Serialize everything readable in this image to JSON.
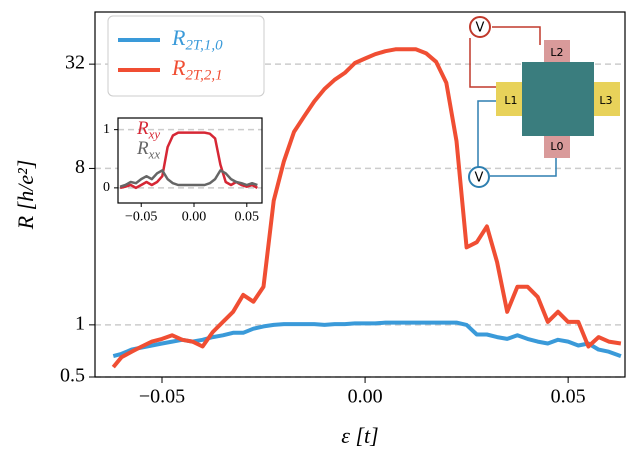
{
  "chart_data": [
    {
      "type": "line",
      "xlabel": "ε [t]",
      "ylabel": "R [h/e²]",
      "yscale": "log",
      "grid": true,
      "xlim": [
        -0.0665,
        0.064
      ],
      "ylim": [
        0.5,
        64
      ],
      "xticks": [
        {
          "value": -0.05,
          "label": "−0.05"
        },
        {
          "value": 0,
          "label": "0.00"
        },
        {
          "value": 0.05,
          "label": "0.05"
        }
      ],
      "yticks": [
        0.5,
        1,
        8,
        32
      ],
      "legend": "upper left",
      "x": [
        -0.062,
        -0.06,
        -0.0575,
        -0.055,
        -0.0525,
        -0.05,
        -0.0475,
        -0.045,
        -0.0425,
        -0.04,
        -0.0375,
        -0.035,
        -0.0325,
        -0.03,
        -0.0275,
        -0.025,
        -0.0225,
        -0.02,
        -0.0175,
        -0.015,
        -0.0125,
        -0.01,
        -0.0075,
        -0.005,
        -0.0025,
        0,
        0.0025,
        0.005,
        0.0075,
        0.01,
        0.0125,
        0.015,
        0.0175,
        0.02,
        0.0225,
        0.025,
        0.0275,
        0.03,
        0.0325,
        0.035,
        0.0375,
        0.04,
        0.0425,
        0.045,
        0.0475,
        0.05,
        0.0525,
        0.055,
        0.0575,
        0.06,
        0.063
      ],
      "series": [
        {
          "name": "R2T,1,0",
          "color": "#3a9ad9",
          "values": [
            0.66,
            0.68,
            0.72,
            0.74,
            0.76,
            0.78,
            0.8,
            0.82,
            0.8,
            0.82,
            0.85,
            0.87,
            0.9,
            0.9,
            0.95,
            0.98,
            1.0,
            1.01,
            1.01,
            1.01,
            1.01,
            1.0,
            1.01,
            1.01,
            1.02,
            1.02,
            1.02,
            1.03,
            1.03,
            1.03,
            1.03,
            1.03,
            1.03,
            1.03,
            1.03,
            1.0,
            0.88,
            0.88,
            0.85,
            0.83,
            0.87,
            0.83,
            0.8,
            0.78,
            0.82,
            0.8,
            0.76,
            0.78,
            0.72,
            0.7,
            0.66
          ]
        },
        {
          "name": "R2T,2,1",
          "color": "#f04e33",
          "values": [
            0.57,
            0.65,
            0.7,
            0.75,
            0.8,
            0.83,
            0.87,
            0.82,
            0.8,
            0.75,
            0.91,
            1.04,
            1.19,
            1.49,
            1.36,
            1.66,
            5.2,
            8.8,
            13,
            16,
            19.5,
            23,
            26,
            28.5,
            32.5,
            34.5,
            36.5,
            38,
            39,
            39,
            39,
            37,
            33,
            25,
            11.5,
            2.8,
            3.0,
            3.7,
            2.3,
            1.19,
            1.66,
            1.66,
            1.45,
            1.04,
            1.19,
            1.04,
            1.04,
            0.75,
            0.85,
            0.8,
            0.78
          ]
        }
      ],
      "diagram_labels": [
        "V",
        "L2",
        "L1",
        "L3",
        "L0",
        "V"
      ]
    },
    {
      "type": "line",
      "grid": true,
      "xlim": [
        -0.072,
        0.0644
      ],
      "ylim": [
        -0.26,
        1.2
      ],
      "xticks": [
        {
          "value": -0.05,
          "label": "−0.05"
        },
        {
          "value": 0,
          "label": "0.00"
        },
        {
          "value": 0.05,
          "label": "0.05"
        }
      ],
      "yticks": [
        0,
        1
      ],
      "x": [
        -0.07,
        -0.065,
        -0.06,
        -0.055,
        -0.05,
        -0.045,
        -0.04,
        -0.035,
        -0.03,
        -0.025,
        -0.02,
        -0.015,
        -0.01,
        -0.005,
        0,
        0.005,
        0.01,
        0.015,
        0.02,
        0.025,
        0.03,
        0.035,
        0.04,
        0.045,
        0.05,
        0.055,
        0.06
      ],
      "series": [
        {
          "name": "Rxy",
          "color": "#d62735",
          "values": [
            0,
            0.02,
            0.05,
            0.0,
            0.05,
            0.1,
            0.05,
            0.1,
            0.2,
            0.7,
            0.9,
            0.95,
            0.95,
            0.95,
            0.95,
            0.95,
            0.95,
            0.93,
            0.85,
            0.4,
            0.1,
            0.05,
            0.1,
            0.05,
            0.02,
            0.05,
            0.0
          ]
        },
        {
          "name": "Rxx",
          "color": "#666666",
          "values": [
            0.02,
            0.05,
            0.1,
            0.08,
            0.15,
            0.2,
            0.15,
            0.25,
            0.3,
            0.15,
            0.08,
            0.05,
            0.05,
            0.05,
            0.05,
            0.05,
            0.05,
            0.08,
            0.15,
            0.3,
            0.25,
            0.15,
            0.1,
            0.08,
            0.05,
            0.08,
            0.05
          ]
        }
      ]
    }
  ]
}
